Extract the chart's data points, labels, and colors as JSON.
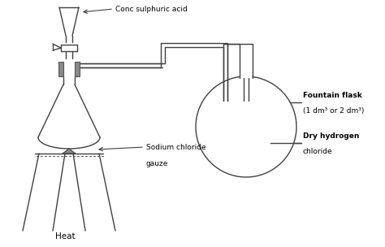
{
  "background_color": "#ffffff",
  "line_color": "#404040",
  "label_color": "#000000",
  "stopper_color": "#888888",
  "labels": {
    "conc_sulphuric_acid": "Conc sulphuric acid",
    "sodium_chloride": "Sodium chloride",
    "gauze": "gauze",
    "heat": "Heat",
    "fountain_flask_line1": "Fountain flask",
    "fountain_flask_line2": "(1 dm³ or 2 dm³)",
    "dry_hydrogen_line1": "Dry hydrogen",
    "dry_hydrogen_line2": "chloride"
  },
  "figsize": [
    4.74,
    3.04
  ],
  "dpi": 100
}
